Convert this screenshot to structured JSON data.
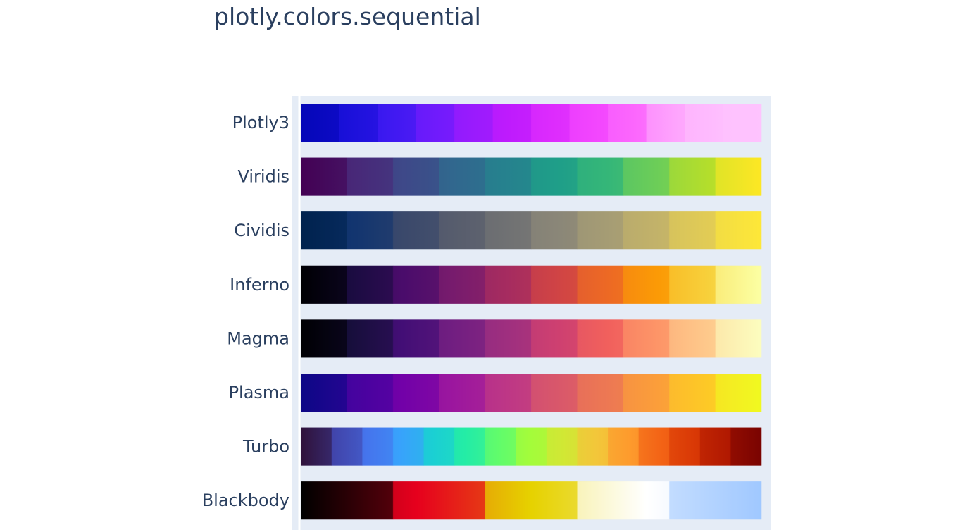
{
  "chart_data": {
    "type": "bar",
    "title": "plotly.colors.sequential",
    "orientation": "horizontal",
    "categories": [
      "Plotly3",
      "Viridis",
      "Cividis",
      "Inferno",
      "Magma",
      "Plasma",
      "Turbo",
      "Blackbody"
    ],
    "series": [
      {
        "colors": [
          "#0508b8",
          "#1910d8",
          "#3c19f0",
          "#6b1cfb",
          "#981cfd",
          "#bf1cfd",
          "#dd2bfd",
          "#f246fe",
          "#fc67fd",
          "#fea5fd",
          "#febefe",
          "#fec3fe"
        ]
      },
      {
        "colors": [
          "#440154",
          "#482878",
          "#3e4989",
          "#31688e",
          "#26828e",
          "#1f9e89",
          "#35b779",
          "#6ece58",
          "#b5de2b",
          "#fde725"
        ]
      },
      {
        "colors": [
          "#00224e",
          "#123570",
          "#3b496c",
          "#575d6d",
          "#707173",
          "#8a8678",
          "#a59c74",
          "#c3b369",
          "#e1cc55",
          "#fee838"
        ]
      },
      {
        "colors": [
          "#000004",
          "#1b0c41",
          "#4a0c6b",
          "#781c6d",
          "#a52c60",
          "#cf4446",
          "#ed6925",
          "#fb9b06",
          "#f7d13d",
          "#fcffa4"
        ]
      },
      {
        "colors": [
          "#000004",
          "#180f3d",
          "#440f76",
          "#721f81",
          "#9e2f7f",
          "#cd4071",
          "#f1605d",
          "#fd9668",
          "#feca8d",
          "#fcfdbf"
        ]
      },
      {
        "colors": [
          "#0d0887",
          "#46039f",
          "#7201a8",
          "#9c179e",
          "#bd3786",
          "#d8576b",
          "#ed7953",
          "#fb9f3a",
          "#fdca26",
          "#f0f921"
        ]
      },
      {
        "colors": [
          "#30123b",
          "#4145ab",
          "#4675ed",
          "#39a2fc",
          "#1bcfd4",
          "#24eca6",
          "#61fc6c",
          "#a4fc3b",
          "#d1e834",
          "#f3c63a",
          "#fe9b2d",
          "#f36315",
          "#d93806",
          "#b11901",
          "#7a0402"
        ]
      },
      {
        "colors": [
          "#000000",
          "#e6001e",
          "#e6d200",
          "#ffffff",
          "#a0c8ff"
        ]
      }
    ],
    "xlim": [
      0,
      1
    ],
    "grid": false,
    "legend": "none"
  }
}
